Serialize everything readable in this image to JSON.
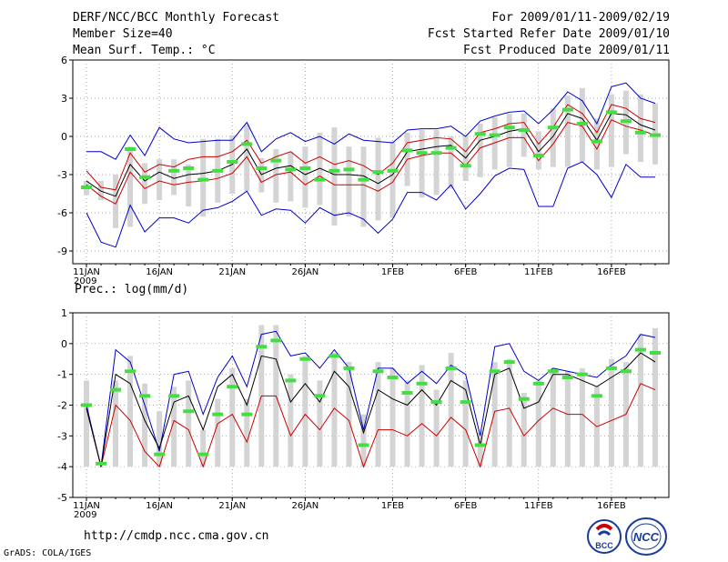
{
  "header": {
    "line1": "DERF/NCC/BCC Monthly Forecast",
    "line2": "Member Size=40",
    "line3": "Mean Surf. Temp.: °C",
    "right1": "For 2009/01/11-2009/02/19",
    "right2": "Fcst Started Refer Date 2009/01/10",
    "right3": "Fcst Produced Date 2009/01/11"
  },
  "footer": {
    "url": "http://cmdp.ncc.cma.gov.cn",
    "credit": "GrADS: COLA/IGES",
    "logo1_text": "BCC",
    "logo2_text": "NCC"
  },
  "colors": {
    "blue": "#0000cc",
    "red": "#cc0000",
    "black": "#000000",
    "green": "#44dd44",
    "bar": "#d4d4d4"
  },
  "chart_data": [
    {
      "type": "line",
      "title": "Mean Surf. Temp.: °C",
      "xlabel": "",
      "ylabel": "°C",
      "ylim": [
        -10,
        6
      ],
      "yticks": [
        -9,
        -6,
        -3,
        0,
        3,
        6
      ],
      "xticks": [
        {
          "day": 1,
          "label": "11JAN",
          "sub": "2009"
        },
        {
          "day": 6,
          "label": "16JAN"
        },
        {
          "day": 11,
          "label": "21JAN"
        },
        {
          "day": 16,
          "label": "26JAN"
        },
        {
          "day": 22,
          "label": "1FEB"
        },
        {
          "day": 27,
          "label": "6FEB"
        },
        {
          "day": 32,
          "label": "11FEB"
        },
        {
          "day": 37,
          "label": "16FEB"
        }
      ],
      "grid": true,
      "days": [
        1,
        2,
        3,
        4,
        5,
        6,
        7,
        8,
        9,
        10,
        11,
        12,
        13,
        14,
        15,
        16,
        17,
        18,
        19,
        20,
        21,
        22,
        23,
        24,
        25,
        26,
        27,
        28,
        29,
        30,
        31,
        32,
        33,
        34,
        35,
        36,
        37,
        38,
        39,
        40
      ],
      "series": [
        {
          "name": "max",
          "values": [
            -1.2,
            -1.2,
            -1.8,
            0.1,
            -1.5,
            0.7,
            -0.2,
            -0.5,
            -0.4,
            -0.3,
            -0.3,
            1.1,
            -1.2,
            -0.2,
            0.3,
            -0.4,
            0.0,
            -0.6,
            0.2,
            -0.3,
            -0.4,
            -0.5,
            0.5,
            0.6,
            0.6,
            0.8,
            0.0,
            1.2,
            1.6,
            1.9,
            2.0,
            1.0,
            2.1,
            3.5,
            2.8,
            1.0,
            3.9,
            4.2,
            3.0,
            2.6
          ]
        },
        {
          "name": "upper",
          "values": [
            -2.7,
            -4.0,
            -4.2,
            -1.3,
            -2.8,
            -2.2,
            -2.4,
            -1.8,
            -1.6,
            -1.6,
            -1.2,
            -0.3,
            -2.1,
            -1.6,
            -1.2,
            -2.1,
            -1.6,
            -2.2,
            -1.9,
            -2.3,
            -3.0,
            -2.1,
            -0.5,
            -0.3,
            -0.1,
            -0.2,
            -1.2,
            0.3,
            0.6,
            1.0,
            1.1,
            -0.6,
            0.7,
            2.5,
            1.8,
            0.3,
            2.5,
            2.2,
            1.4,
            1.1
          ]
        },
        {
          "name": "mean",
          "values": [
            -3.5,
            -4.3,
            -4.7,
            -2.2,
            -3.5,
            -2.8,
            -3.3,
            -3.0,
            -2.9,
            -2.7,
            -2.2,
            -1.0,
            -3.0,
            -2.5,
            -2.3,
            -3.0,
            -2.5,
            -3.0,
            -3.0,
            -3.1,
            -3.7,
            -3.0,
            -1.2,
            -1.0,
            -0.8,
            -0.7,
            -1.7,
            -0.3,
            0.0,
            0.4,
            0.6,
            -1.2,
            0.0,
            1.8,
            1.4,
            -0.3,
            1.8,
            1.7,
            0.9,
            0.5
          ]
        },
        {
          "name": "lower",
          "values": [
            -3.8,
            -4.7,
            -5.3,
            -2.8,
            -4.1,
            -3.5,
            -3.8,
            -3.6,
            -3.5,
            -3.3,
            -2.9,
            -1.6,
            -3.6,
            -3.0,
            -2.8,
            -3.8,
            -3.1,
            -3.8,
            -3.8,
            -3.8,
            -4.3,
            -3.6,
            -1.8,
            -1.5,
            -1.3,
            -1.3,
            -2.3,
            -0.9,
            -0.5,
            -0.1,
            -0.1,
            -1.9,
            -0.6,
            1.1,
            0.8,
            -1.0,
            1.3,
            0.8,
            0.5,
            0.1
          ]
        },
        {
          "name": "min",
          "values": [
            -6.0,
            -8.3,
            -8.7,
            -5.4,
            -7.5,
            -6.4,
            -6.4,
            -6.8,
            -5.8,
            -5.6,
            -5.1,
            -4.3,
            -6.2,
            -5.7,
            -5.8,
            -6.8,
            -5.6,
            -6.2,
            -6.0,
            -6.5,
            -7.6,
            -6.5,
            -4.4,
            -4.4,
            -5.0,
            -3.8,
            -5.7,
            -4.5,
            -3.1,
            -2.5,
            -2.6,
            -5.5,
            -5.5,
            -2.5,
            -2.0,
            -3.0,
            -4.8,
            -2.2,
            -3.2,
            -3.2
          ]
        },
        {
          "name": "observed",
          "values": [
            -4.0,
            null,
            null,
            -1.0,
            -3.2,
            null,
            -2.7,
            -2.5,
            -3.4,
            -2.7,
            -2.0,
            -0.6,
            -2.5,
            -1.9,
            -2.6,
            -2.5,
            -3.4,
            -2.7,
            -2.6,
            -3.4,
            -2.8,
            -2.7,
            -1.1,
            -1.3,
            -1.3,
            -0.9,
            -2.3,
            0.2,
            0.1,
            0.7,
            0.5,
            -1.5,
            0.7,
            2.1,
            1.0,
            -0.4,
            1.9,
            1.2,
            0.3,
            0.1
          ]
        },
        {
          "name": "range_low",
          "values": [
            -4.6,
            -5.0,
            -7.2,
            -7.1,
            -5.3,
            -5.0,
            -4.6,
            -5.5,
            -6.3,
            -5.2,
            -4.5,
            -4.3,
            -4.4,
            -5.2,
            -5.1,
            -5.6,
            -5.4,
            -7.0,
            -6.3,
            -7.1,
            -6.6,
            -6.4,
            -3.9,
            -4.8,
            -4.6,
            -4.1,
            -3.5,
            -3.2,
            -2.6,
            -2.4,
            -1.6,
            -2.6,
            -2.4,
            -2.4,
            -2.0,
            -2.6,
            -2.4,
            -1.4,
            -2.0,
            -2.2
          ]
        },
        {
          "name": "range_high",
          "values": [
            -3.5,
            -3.5,
            -3.0,
            -0.8,
            -2.1,
            -1.8,
            -1.8,
            -2.2,
            -0.2,
            -0.2,
            0.1,
            0.9,
            -1.7,
            -1.0,
            -1.2,
            -0.8,
            0.3,
            0.7,
            -0.8,
            -0.8,
            -0.1,
            -0.4,
            0.3,
            0.5,
            0.5,
            0.0,
            0.1,
            1.0,
            1.5,
            1.8,
            1.8,
            0.4,
            2.2,
            3.2,
            3.8,
            1.4,
            3.3,
            3.6,
            3.3,
            2.6
          ]
        }
      ]
    },
    {
      "type": "line",
      "title": "Prec.: log(mm/d)",
      "xlabel": "",
      "ylabel": "log(mm/d)",
      "ylim": [
        -5,
        1
      ],
      "yticks": [
        -5,
        -4,
        -3,
        -2,
        -1,
        0,
        1
      ],
      "xticks": [
        {
          "day": 1,
          "label": "11JAN",
          "sub": "2009"
        },
        {
          "day": 6,
          "label": "16JAN"
        },
        {
          "day": 11,
          "label": "21JAN"
        },
        {
          "day": 16,
          "label": "26JAN"
        },
        {
          "day": 22,
          "label": "1FEB"
        },
        {
          "day": 27,
          "label": "6FEB"
        },
        {
          "day": 32,
          "label": "11FEB"
        },
        {
          "day": 37,
          "label": "16FEB"
        }
      ],
      "grid": true,
      "days": [
        1,
        2,
        3,
        4,
        5,
        6,
        7,
        8,
        9,
        10,
        11,
        12,
        13,
        14,
        15,
        16,
        17,
        18,
        19,
        20,
        21,
        22,
        23,
        24,
        25,
        26,
        27,
        28,
        29,
        30,
        31,
        32,
        33,
        34,
        35,
        36,
        37,
        38,
        39,
        40
      ],
      "series": [
        {
          "name": "max",
          "values": [
            -2.0,
            -4.0,
            -0.2,
            -0.6,
            -2.0,
            -3.5,
            -1.0,
            -0.9,
            -2.3,
            -1.1,
            -0.4,
            -1.4,
            0.3,
            0.4,
            -0.4,
            -0.3,
            -0.8,
            -0.2,
            -0.8,
            -2.8,
            -0.8,
            -0.8,
            -1.3,
            -0.9,
            -1.3,
            -0.7,
            -1.0,
            -3.0,
            -0.1,
            0.0,
            -0.9,
            -1.2,
            -0.8,
            -0.9,
            -1.0,
            -1.1,
            -0.7,
            -0.4,
            0.3,
            0.2
          ]
        },
        {
          "name": "mean",
          "values": [
            -2.1,
            -4.0,
            -1.0,
            -1.3,
            -2.5,
            -3.4,
            -1.9,
            -1.7,
            -2.8,
            -1.4,
            -1.0,
            -2.0,
            -0.4,
            -0.5,
            -1.9,
            -1.3,
            -1.9,
            -0.9,
            -1.4,
            -2.9,
            -1.5,
            -1.8,
            -2.0,
            -1.5,
            -2.0,
            -1.2,
            -1.5,
            -3.3,
            -1.0,
            -0.8,
            -2.1,
            -1.9,
            -1.0,
            -1.0,
            -1.2,
            -1.4,
            -1.1,
            -0.8,
            -0.3,
            -0.6
          ]
        },
        {
          "name": "min",
          "values": [
            -2.1,
            -4.0,
            -2.0,
            -2.5,
            -3.5,
            -4.0,
            -2.5,
            -2.8,
            -4.0,
            -2.6,
            -2.3,
            -3.2,
            -1.7,
            -1.7,
            -3.0,
            -2.3,
            -2.8,
            -2.1,
            -2.5,
            -4.0,
            -2.8,
            -2.8,
            -3.0,
            -2.6,
            -3.0,
            -2.4,
            -2.8,
            -4.0,
            -2.2,
            -2.1,
            -3.0,
            -2.5,
            -2.1,
            -2.3,
            -2.3,
            -2.7,
            -2.5,
            -2.3,
            -1.3,
            -1.5
          ]
        },
        {
          "name": "observed",
          "values": [
            -2.0,
            -3.9,
            -1.5,
            -0.9,
            -1.7,
            -3.6,
            -1.7,
            -2.2,
            -3.6,
            -2.3,
            -1.4,
            -2.3,
            -0.1,
            0.1,
            -1.2,
            -0.5,
            -1.7,
            -0.4,
            -0.8,
            -3.3,
            -0.9,
            -1.1,
            -1.6,
            -1.3,
            -1.9,
            -0.8,
            -1.9,
            -3.3,
            -0.9,
            -0.6,
            -1.8,
            -1.3,
            -0.9,
            -1.1,
            -1.0,
            -1.7,
            -0.8,
            -0.9,
            -0.2,
            -0.3
          ]
        },
        {
          "name": "range_low",
          "values": [
            -4.0,
            -4.0,
            -4.0,
            -4.0,
            -4.0,
            -4.0,
            -4.0,
            -4.0,
            -4.0,
            -4.0,
            -4.0,
            -4.0,
            -4.0,
            -4.0,
            -4.0,
            -4.0,
            -4.0,
            -4.0,
            -4.0,
            -4.0,
            -4.0,
            -4.0,
            -4.0,
            -4.0,
            -4.0,
            -4.0,
            -4.0,
            -4.0,
            -4.0,
            -4.0,
            -4.0,
            -4.0,
            -4.0,
            -4.0,
            -4.0,
            -4.0,
            -4.0,
            -4.0,
            -4.0,
            -4.0
          ]
        },
        {
          "name": "range_high",
          "values": [
            -1.2,
            -4.0,
            -1.2,
            -0.4,
            -1.3,
            -2.2,
            -1.4,
            -1.2,
            -2.8,
            -1.8,
            -0.8,
            -1.8,
            0.6,
            0.6,
            -1.0,
            -0.4,
            -1.2,
            -0.3,
            -0.6,
            -2.3,
            -0.6,
            -0.8,
            -1.2,
            -0.7,
            -1.5,
            -0.3,
            -1.2,
            -2.9,
            -0.6,
            -0.5,
            -1.6,
            -1.2,
            -0.8,
            -0.9,
            -0.8,
            -1.4,
            -0.5,
            -0.6,
            0.3,
            0.5
          ]
        }
      ]
    }
  ]
}
